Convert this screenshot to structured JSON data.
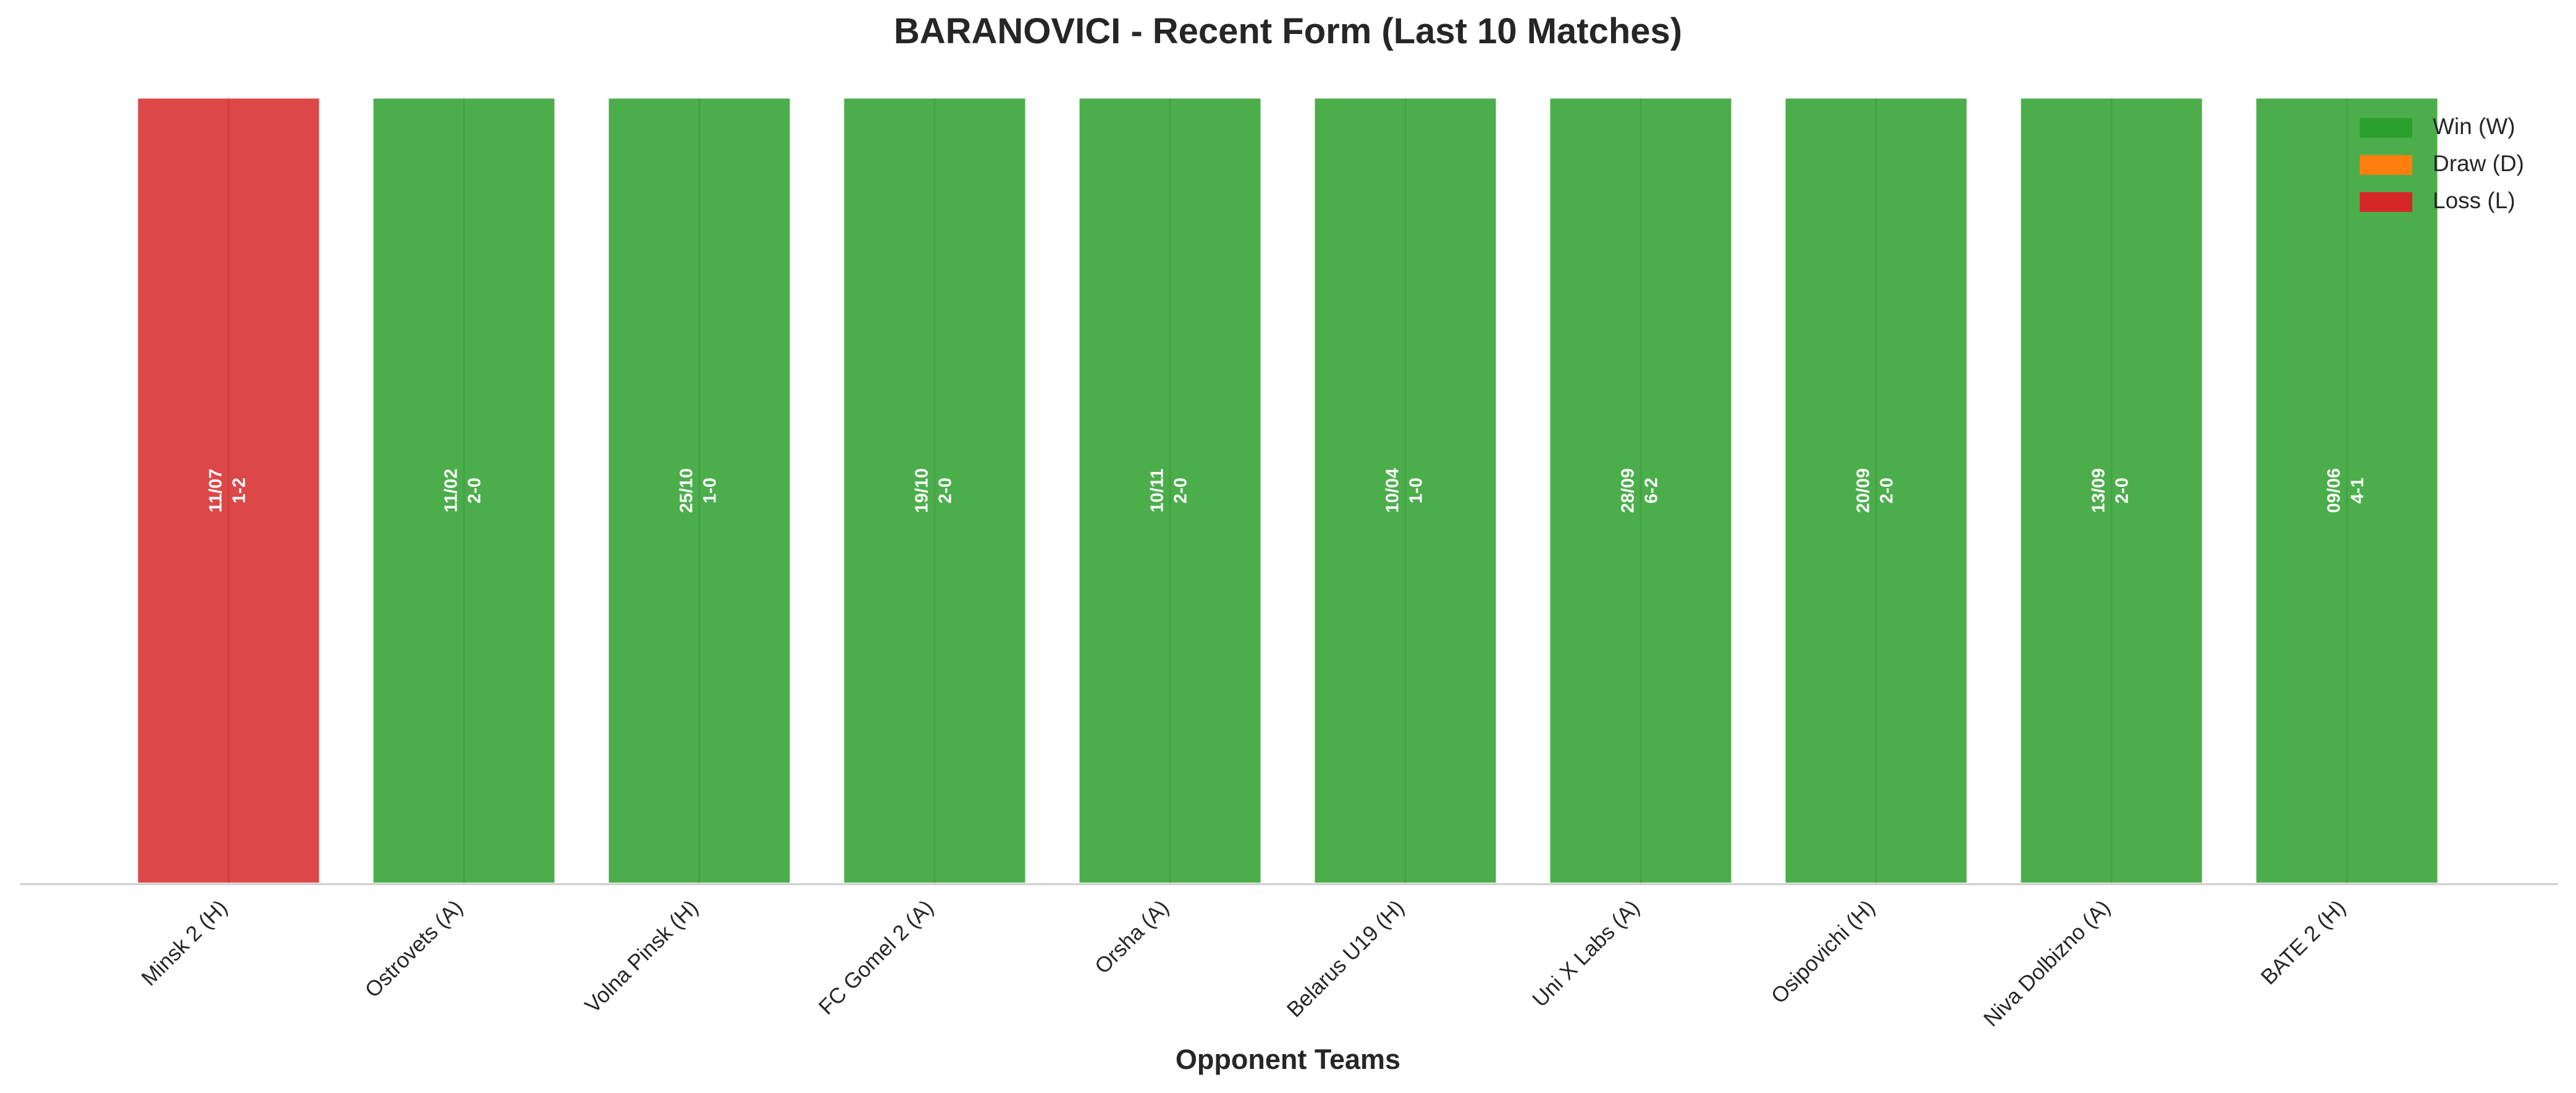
{
  "chart_data": {
    "type": "bar",
    "title": "BARANOVICI - Recent Form (Last 10 Matches)",
    "x_label": "Opponent Teams",
    "categories": [
      "Minsk 2 (H)",
      "Ostrovets (A)",
      "Volna Pinsk (H)",
      "FC Gomel 2 (A)",
      "Orsha (A)",
      "Belarus U19 (H)",
      "Uni X Labs (A)",
      "Osipovichi (H)",
      "Niva Dolbizno (A)",
      "BATE 2 (H)"
    ],
    "values": [
      1,
      1,
      1,
      1,
      1,
      1,
      1,
      1,
      1,
      1
    ],
    "dates": [
      "11/07",
      "11/02",
      "25/10",
      "19/10",
      "10/11",
      "10/04",
      "28/09",
      "20/09",
      "13/09",
      "09/06"
    ],
    "scores": [
      "1-2",
      "2-0",
      "1-0",
      "2-0",
      "2-0",
      "1-0",
      "6-2",
      "2-0",
      "2-0",
      "4-1"
    ],
    "colors": [
      "#d62728",
      "#2ca02c",
      "#2ca02c",
      "#2ca02c",
      "#2ca02c",
      "#2ca02c",
      "#2ca02c",
      "#2ca02c",
      "#2ca02c",
      "#2ca02c"
    ],
    "ylim": [
      0,
      1
    ],
    "legend_position": "upper right",
    "legend": [
      {
        "name": "Win (W)",
        "color": "#2ca02c"
      },
      {
        "name": "Draw (D)",
        "color": "#ff7f0e"
      },
      {
        "name": "Loss (L)",
        "color": "#d62728"
      }
    ]
  }
}
